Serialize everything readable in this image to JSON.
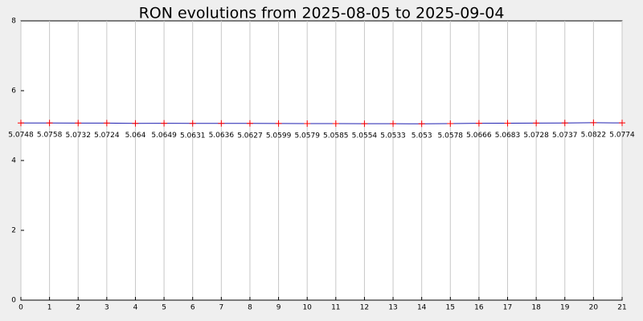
{
  "chart_data": {
    "type": "line",
    "title": "RON evolutions from 2025-08-05 to 2025-09-04",
    "x": [
      0,
      1,
      2,
      3,
      4,
      5,
      6,
      7,
      8,
      9,
      10,
      11,
      12,
      13,
      14,
      15,
      16,
      17,
      18,
      19,
      20,
      21
    ],
    "values": [
      5.0748,
      5.0758,
      5.0732,
      5.0724,
      5.064,
      5.0649,
      5.0631,
      5.0636,
      5.0627,
      5.0599,
      5.0579,
      5.0585,
      5.0554,
      5.0533,
      5.053,
      5.0578,
      5.0666,
      5.0683,
      5.0728,
      5.0737,
      5.0822,
      5.0774
    ],
    "color": "#2020b0",
    "marker_color": "#ff0000",
    "xlim": [
      0,
      21
    ],
    "xticks": [
      0,
      1,
      2,
      3,
      4,
      5,
      6,
      7,
      8,
      9,
      10,
      11,
      12,
      13,
      14,
      15,
      16,
      17,
      18,
      19,
      20,
      21
    ],
    "ylim": [
      0,
      8
    ],
    "yticks": [
      0,
      2,
      4,
      6,
      8
    ],
    "grid": "x"
  }
}
